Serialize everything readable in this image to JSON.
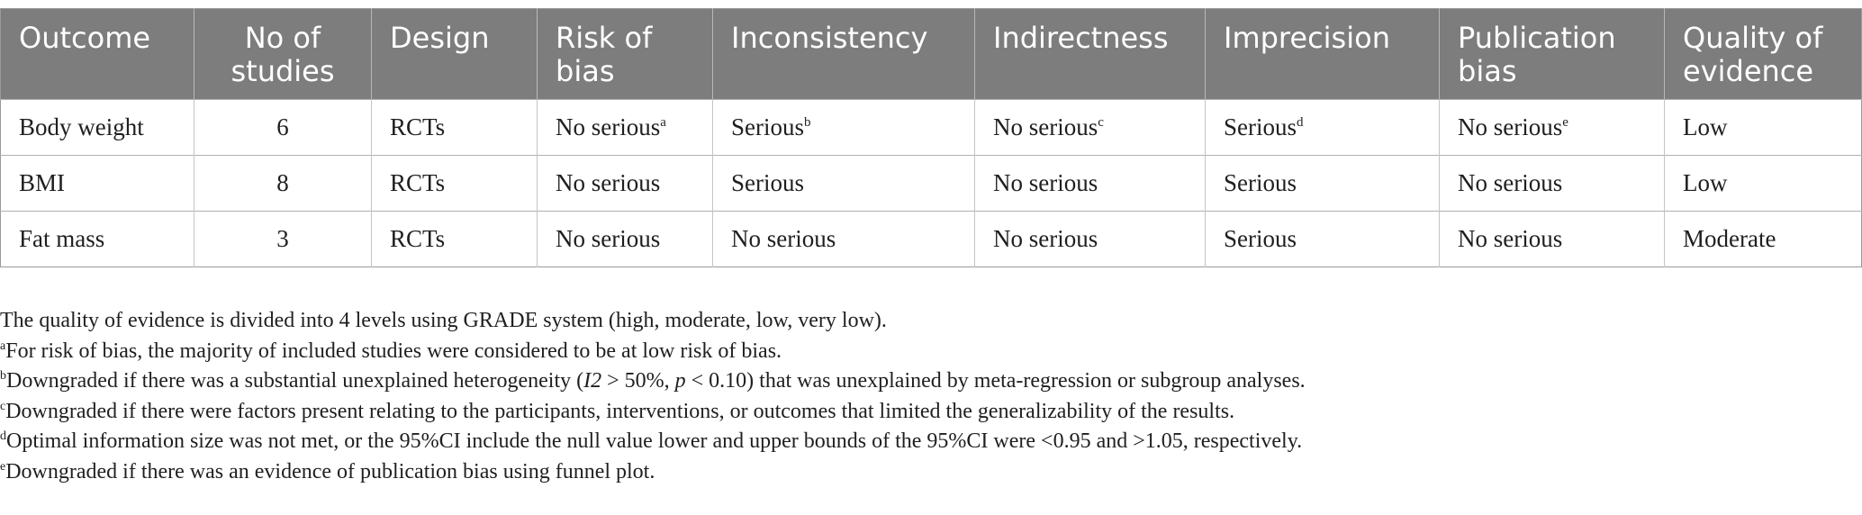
{
  "table": {
    "headers": [
      [
        "Outcome"
      ],
      [
        "No of",
        "studies"
      ],
      [
        "Design"
      ],
      [
        "Risk of",
        "bias"
      ],
      [
        "Inconsistency"
      ],
      [
        "Indirectness"
      ],
      [
        "Imprecision"
      ],
      [
        "Publication",
        "bias"
      ],
      [
        "Quality of",
        "evidence"
      ]
    ],
    "rows": [
      [
        "Body weight",
        "6",
        "RCTs",
        "No serious",
        "Serious",
        "No serious",
        "Serious",
        "No serious",
        "Low"
      ],
      [
        "BMI",
        "8",
        "RCTs",
        "No serious",
        "Serious",
        "No serious",
        "Serious",
        "No serious",
        "Low"
      ],
      [
        "Fat mass",
        "3",
        "RCTs",
        "No serious",
        "No serious",
        "No serious",
        "Serious",
        "No serious",
        "Moderate"
      ]
    ],
    "row1_marks": [
      "a",
      "b",
      "c",
      "d",
      "e"
    ]
  },
  "notes": {
    "main": "The quality of evidence is divided into 4 levels using GRADE system (high, moderate, low, very low).",
    "a_mark": "a",
    "a_text": "For risk of bias, the majority of included studies were considered to be at low risk of bias.",
    "b_mark": "b",
    "b_pre": "Downgraded if there was a substantial unexplained heterogeneity (",
    "b_i2": "I2",
    "b_mid": " > 50%, ",
    "b_p": "p",
    "b_post": " < 0.10) that was unexplained by meta-regression or subgroup analyses.",
    "c_mark": "c",
    "c_text": "Downgraded if there were factors present relating to the participants, interventions, or outcomes that limited the generalizability of the results.",
    "d_mark": "d",
    "d_text": "Optimal information size was not met, or the 95%CI include the null value lower and upper bounds of the 95%CI were <0.95 and >1.05, respectively.",
    "e_mark": "e",
    "e_text": "Downgraded if there was an evidence of publication bias using funnel plot."
  }
}
